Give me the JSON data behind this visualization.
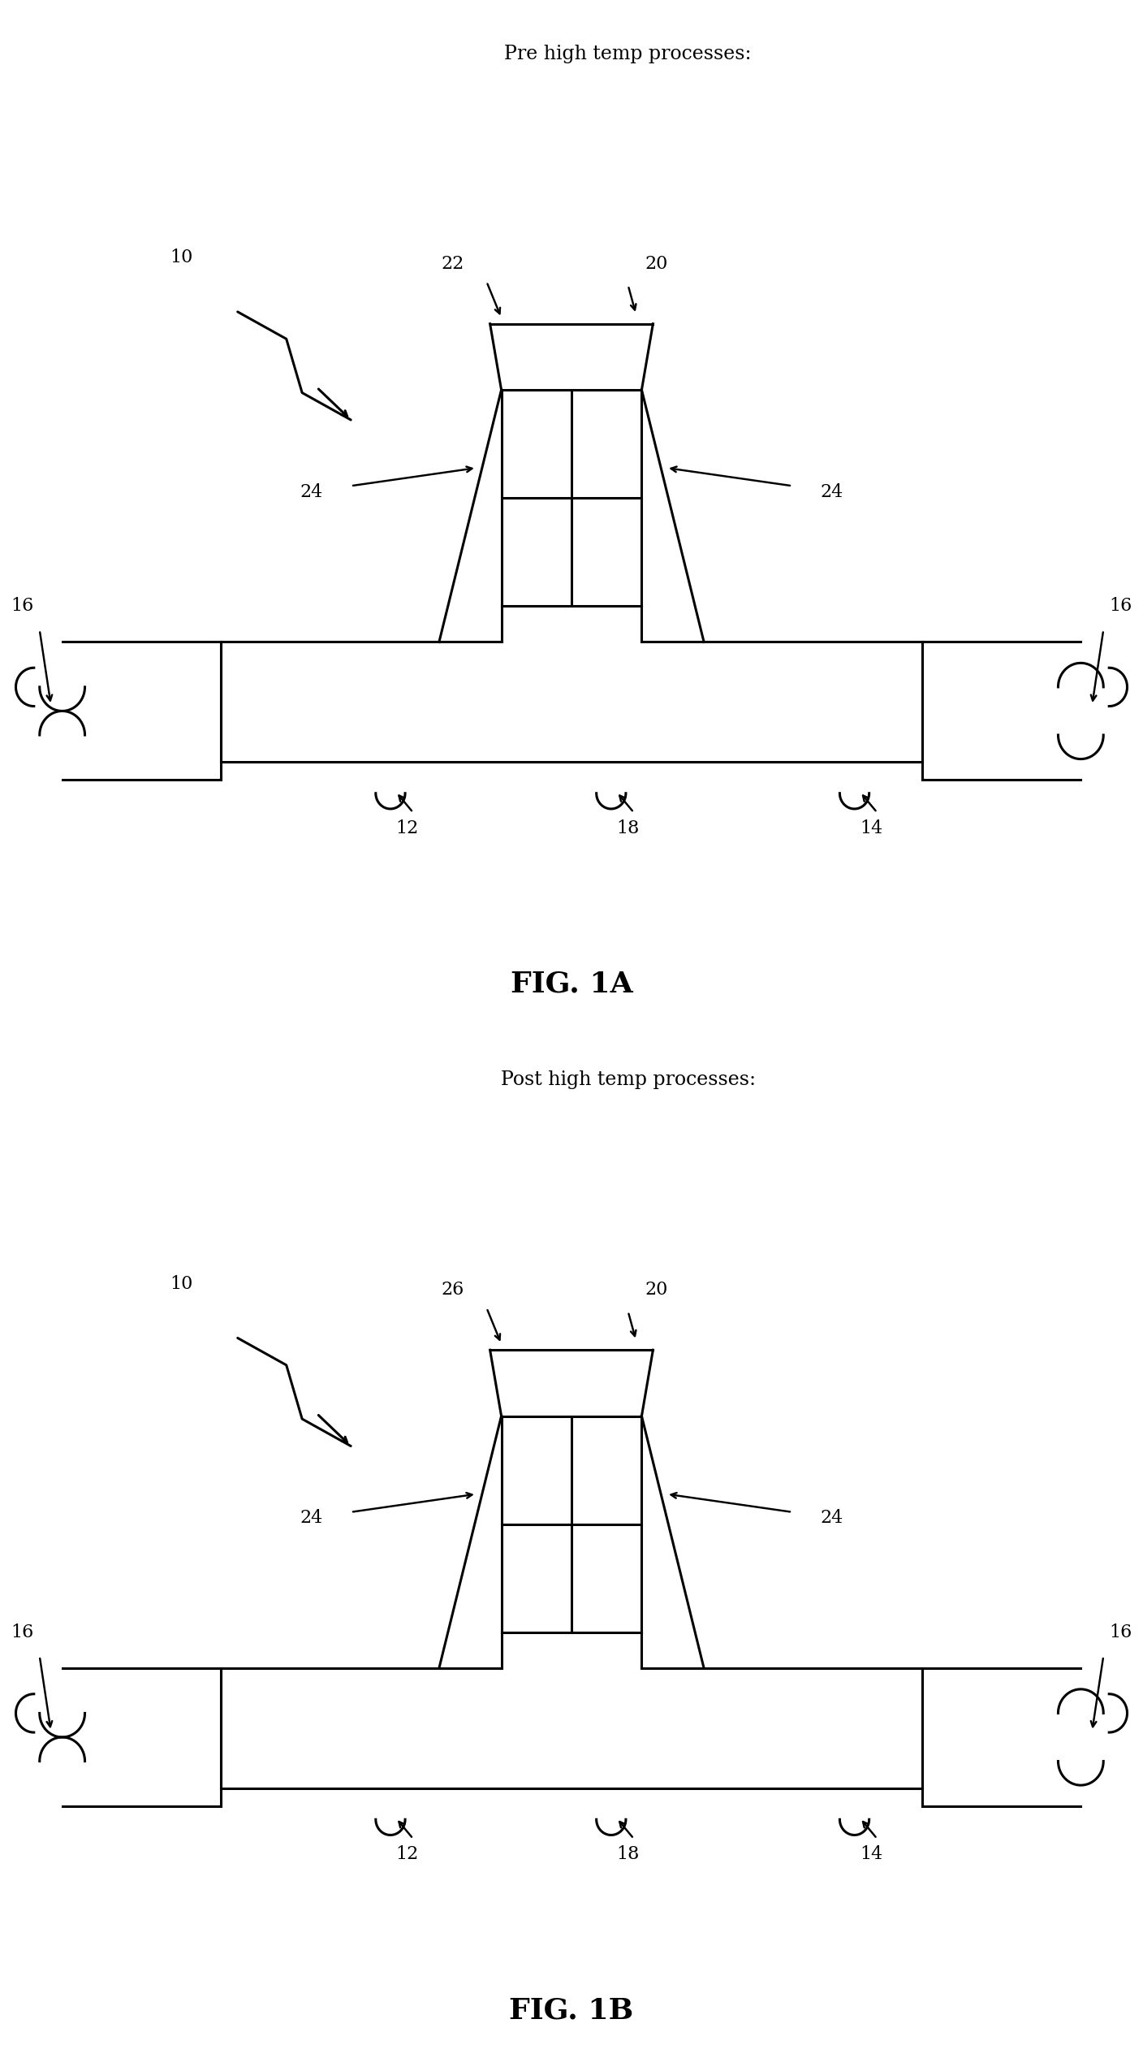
{
  "fig1a_title": "Pre high temp processes:",
  "fig1b_title": "Post high temp processes:",
  "fig1a_label": "FIG. 1A",
  "fig1b_label": "FIG. 1B",
  "background_color": "#ffffff",
  "line_color": "#000000",
  "line_width": 2.2,
  "title_fontsize": 17,
  "number_fontsize": 16,
  "fig_label_fontsize": 26
}
